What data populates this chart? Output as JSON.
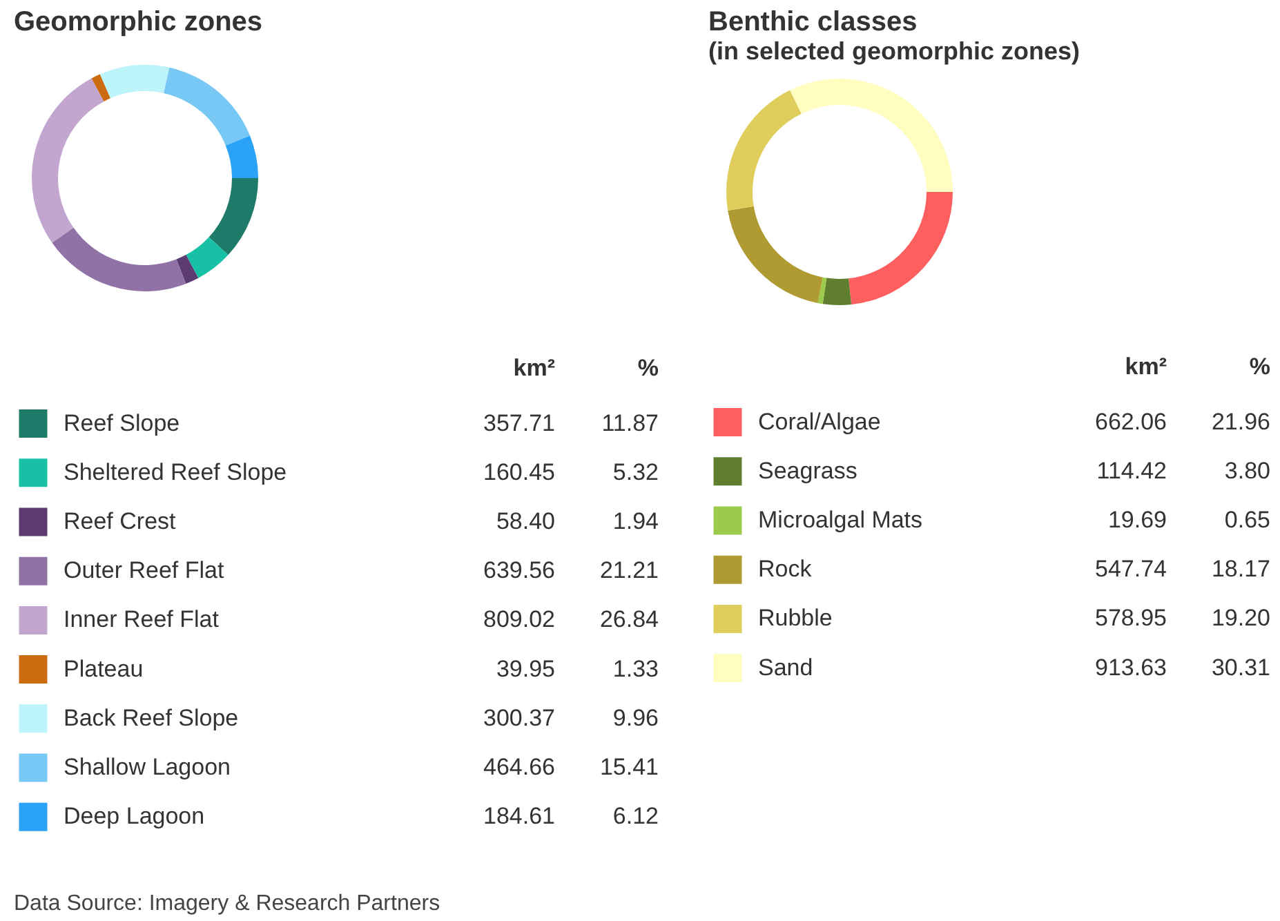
{
  "chart_data": [
    {
      "type": "donut",
      "title": "Geomorphic zones",
      "categories": [
        "Reef Slope",
        "Sheltered Reef Slope",
        "Reef Crest",
        "Outer Reef Flat",
        "Inner Reef Flat",
        "Plateau",
        "Back Reef Slope",
        "Shallow Lagoon",
        "Deep Lagoon"
      ],
      "colors": [
        "#1e7b69",
        "#18c0a6",
        "#5c3b73",
        "#9072a6",
        "#c2a6d0",
        "#cc6a10",
        "#bdf4fa",
        "#78c8f6",
        "#2aa2f5"
      ],
      "values": [
        357.71,
        160.45,
        58.4,
        639.56,
        809.02,
        39.95,
        300.37,
        464.66,
        184.61
      ],
      "value_labels": [
        "357.71",
        "160.45",
        "58.40",
        "639.56",
        "809.02",
        "39.95",
        "300.37",
        "464.66",
        "184.61"
      ],
      "legend": "bottom",
      "annotations": [
        "km²",
        "%",
        {
          "text": "11.87",
          "x": "Reef Slope"
        },
        {
          "text": "5.32",
          "x": "Sheltered Reef Slope"
        },
        {
          "text": "1.94",
          "x": "Reef Crest"
        },
        {
          "text": "21.21",
          "x": "Outer Reef Flat"
        },
        {
          "text": "26.84",
          "x": "Inner Reef Flat"
        },
        {
          "text": "1.33",
          "x": "Plateau"
        },
        {
          "text": "9.96",
          "x": "Back Reef Slope"
        },
        {
          "text": "15.41",
          "x": "Shallow Lagoon"
        },
        {
          "text": "6.12",
          "x": "Deep Lagoon"
        },
        "Data Source: Imagery & Research Partners"
      ]
    },
    {
      "type": "donut",
      "title": "Benthic classes",
      "subtitle": "(in selected geomorphic zones)",
      "categories": [
        "Coral/Algae",
        "Seagrass",
        "Microalgal Mats",
        "Rock",
        "Rubble",
        "Sand"
      ],
      "colors": [
        "#fd5f5f",
        "#5f7f2f",
        "#9ccb4c",
        "#b09b33",
        "#dfcd5c",
        "#fffec0"
      ],
      "values": [
        662.06,
        114.42,
        19.69,
        547.74,
        578.95,
        913.63
      ],
      "value_labels": [
        "662.06",
        "114.42",
        "19.69",
        "547.74",
        "578.95",
        "913.63"
      ],
      "legend": "bottom",
      "annotations": [
        "km²",
        "%",
        {
          "text": "21.96",
          "x": "Coral/Algae"
        },
        {
          "text": "3.80",
          "x": "Seagrass"
        },
        {
          "text": "0.65",
          "x": "Microalgal Mats"
        },
        {
          "text": "18.17",
          "x": "Rock"
        },
        {
          "text": "19.20",
          "x": "Rubble"
        },
        {
          "text": "30.31",
          "x": "Sand"
        }
      ]
    }
  ]
}
